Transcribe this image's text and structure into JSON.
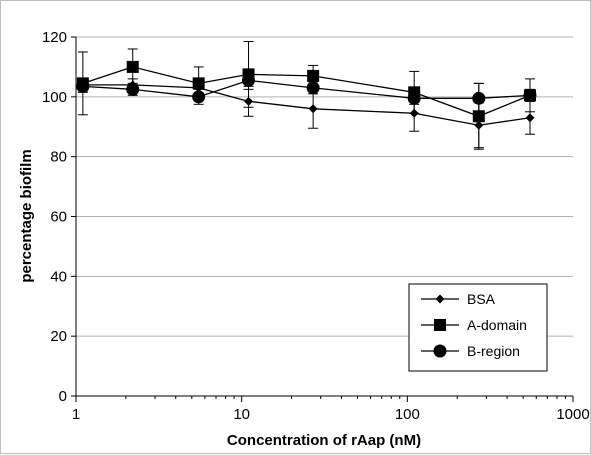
{
  "chart_data": {
    "type": "line",
    "title": "",
    "xlabel": "Concentration of rAap (nM)",
    "ylabel": "percentage biofilm",
    "x_scale": "log",
    "xlim": [
      1,
      1000
    ],
    "ylim": [
      0,
      120
    ],
    "x_ticks": [
      1,
      10,
      100,
      1000
    ],
    "y_ticks": [
      0,
      20,
      40,
      60,
      80,
      100,
      120
    ],
    "grid": "horizontal",
    "legend_position": "bottom-right",
    "series": [
      {
        "name": "BSA",
        "marker": "diamond",
        "color": "#000000",
        "x": [
          1.1,
          2.2,
          5.5,
          11,
          27,
          110,
          270,
          550
        ],
        "y": [
          104,
          104,
          103,
          98.5,
          96,
          94.5,
          90.5,
          93
        ],
        "err": [
          2,
          2,
          2,
          5,
          6.5,
          6,
          7.5,
          5.5
        ]
      },
      {
        "name": "A-domain",
        "marker": "square",
        "color": "#000000",
        "x": [
          1.1,
          2.2,
          5.5,
          11,
          27,
          110,
          270,
          550
        ],
        "y": [
          104.5,
          110,
          104.5,
          107.5,
          107,
          101.5,
          93.5,
          100.5
        ],
        "err": [
          10.5,
          6,
          5.5,
          11,
          3.5,
          7,
          11,
          5.5
        ]
      },
      {
        "name": "B-region",
        "marker": "circle",
        "color": "#000000",
        "x": [
          1.1,
          2.2,
          5.5,
          11,
          27,
          110,
          270,
          550
        ],
        "y": [
          103.5,
          102.5,
          100,
          105.5,
          103,
          99.5,
          99.5,
          100.5
        ],
        "err": [
          2,
          2,
          2.5,
          3,
          2,
          2,
          5,
          2
        ]
      }
    ]
  }
}
